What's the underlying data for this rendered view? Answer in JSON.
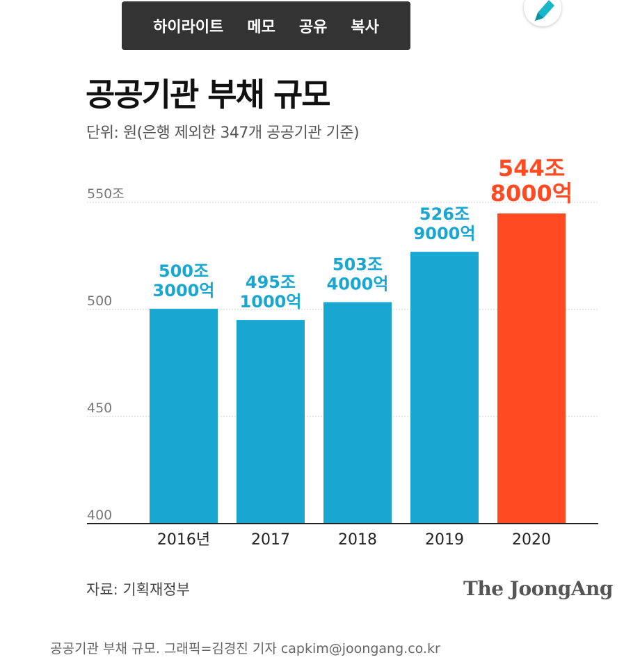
{
  "toolbar": {
    "highlight": "하이라이트",
    "memo": "메모",
    "share": "공유",
    "copy": "복사"
  },
  "pen_icon": "pen-icon",
  "colors": {
    "bar": "#19A7D1",
    "highlight_bar": "#FF4A22",
    "toolbar_bg": "#333333",
    "pen": "#19B5C9"
  },
  "source": "자료: 기획재정부",
  "brand": "The JoongAng",
  "caption": "공공기관 부채 규모. 그래픽=김경진 기자 capkim@joongang.co.kr",
  "chart_data": {
    "type": "bar",
    "title": "공공기관 부채 규모",
    "subtitle": "단위: 원(은행 제외한 347개 공공기관 기준)",
    "categories": [
      "2016년",
      "2017",
      "2018",
      "2019",
      "2020"
    ],
    "values": [
      500.3,
      495.1,
      503.4,
      526.9,
      544.8
    ],
    "value_labels": [
      [
        "500조",
        "3000억"
      ],
      [
        "495조",
        "1000억"
      ],
      [
        "503조",
        "4000억"
      ],
      [
        "526조",
        "9000억"
      ],
      [
        "544조",
        "8000억"
      ]
    ],
    "highlight_index": 4,
    "yticks": [
      {
        "value": 400,
        "label": "400"
      },
      {
        "value": 450,
        "label": "450"
      },
      {
        "value": 500,
        "label": "500"
      },
      {
        "value": 550,
        "label": "550조"
      }
    ],
    "ylim": [
      400,
      550
    ],
    "grid": true,
    "xlabel": "",
    "ylabel": ""
  }
}
